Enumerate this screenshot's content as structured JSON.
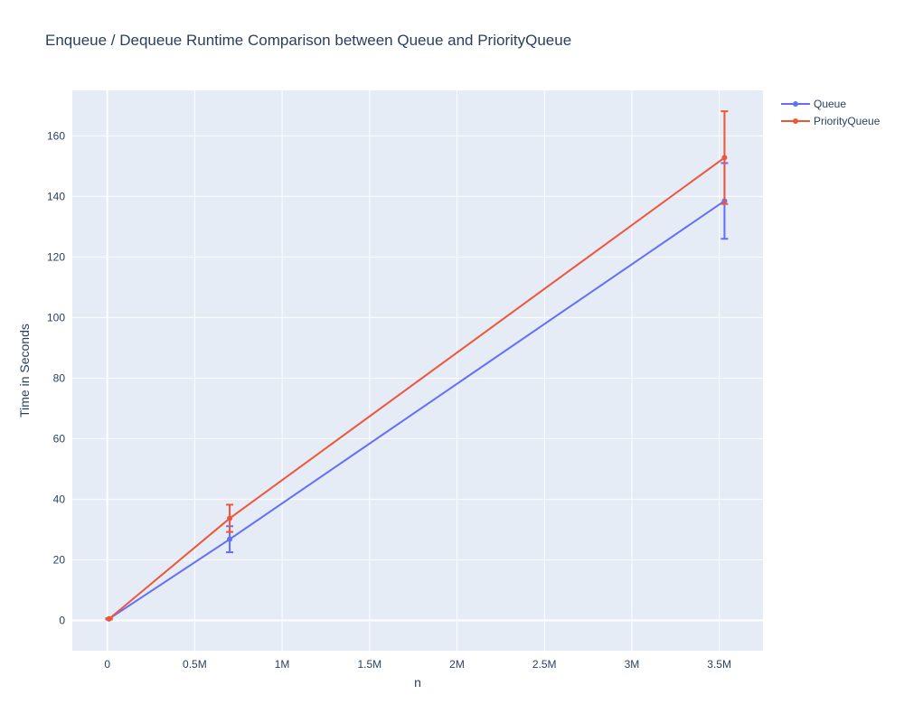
{
  "chart_data": {
    "type": "line",
    "title": "Enqueue / Dequeue Runtime Comparison between Queue and PriorityQueue",
    "xlabel": "n",
    "ylabel": "Time in Seconds",
    "xlim": [
      -200000,
      3750000
    ],
    "ylim": [
      -10,
      175
    ],
    "x_ticks": [
      0,
      500000,
      1000000,
      1500000,
      2000000,
      2500000,
      3000000,
      3500000
    ],
    "x_tick_labels": [
      "0",
      "0.5M",
      "1M",
      "1.5M",
      "2M",
      "2.5M",
      "3M",
      "3.5M"
    ],
    "y_ticks": [
      0,
      20,
      40,
      60,
      80,
      100,
      120,
      140,
      160
    ],
    "y_tick_labels": [
      "0",
      "20",
      "40",
      "60",
      "80",
      "100",
      "120",
      "140",
      "160"
    ],
    "grid": true,
    "legend_position": "top-right",
    "series": [
      {
        "name": "Queue",
        "color": "#636efa",
        "x": [
          10000,
          700000,
          3530000
        ],
        "y": [
          0.5,
          26.8,
          138.5
        ],
        "error_low": [
          0.2,
          4.3,
          12.5
        ],
        "error_high": [
          0.2,
          4.3,
          12.5
        ]
      },
      {
        "name": "PriorityQueue",
        "color": "#ef553b",
        "x": [
          10000,
          700000,
          3530000
        ],
        "y": [
          0.5,
          33.7,
          152.8
        ],
        "error_low": [
          0.2,
          4.5,
          15.3
        ],
        "error_high": [
          0.2,
          4.5,
          15.3
        ]
      }
    ]
  }
}
